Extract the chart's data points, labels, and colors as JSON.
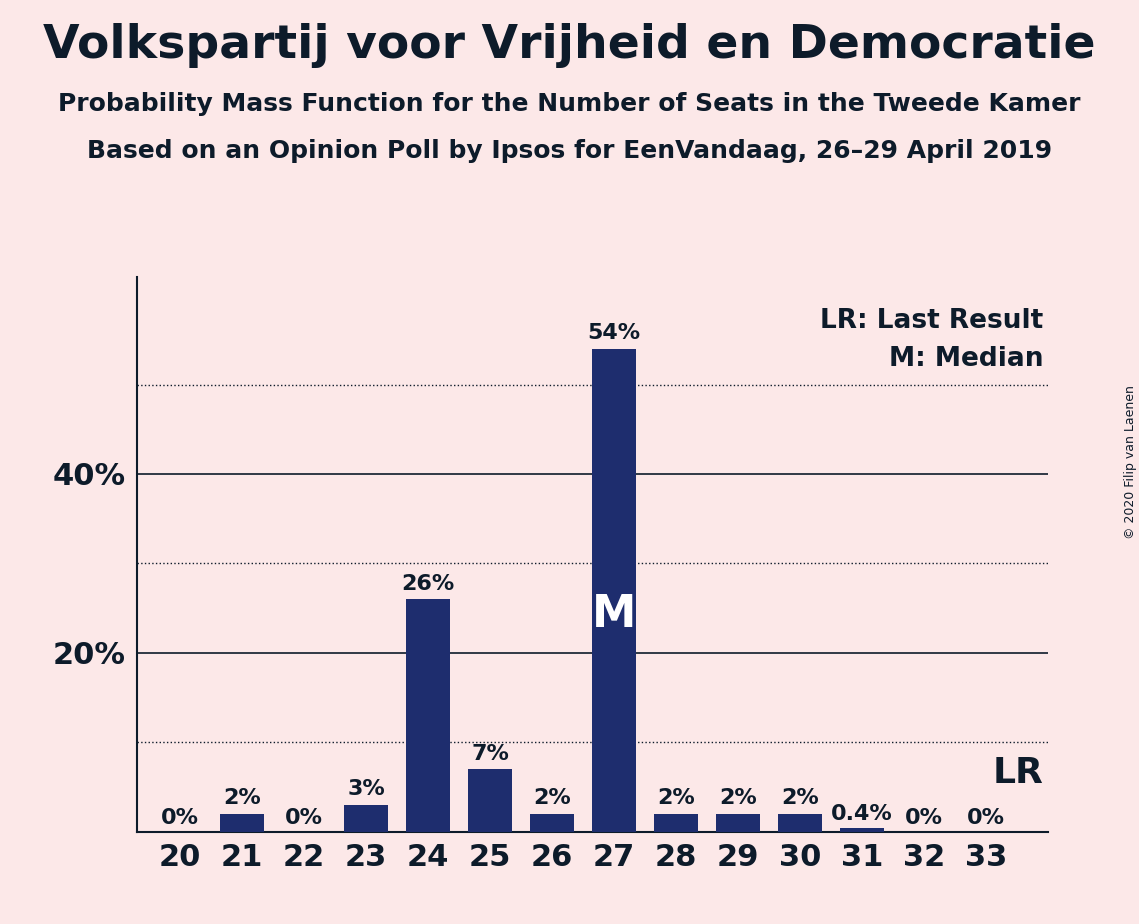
{
  "title": "Volkspartij voor Vrijheid en Democratie",
  "subtitle1": "Probability Mass Function for the Number of Seats in the Tweede Kamer",
  "subtitle2": "Based on an Opinion Poll by Ipsos for EenVandaag, 26–29 April 2019",
  "copyright": "© 2020 Filip van Laenen",
  "seats": [
    20,
    21,
    22,
    23,
    24,
    25,
    26,
    27,
    28,
    29,
    30,
    31,
    32,
    33
  ],
  "probabilities": [
    0.0,
    0.02,
    0.0,
    0.03,
    0.26,
    0.07,
    0.02,
    0.54,
    0.02,
    0.02,
    0.02,
    0.004,
    0.0,
    0.0
  ],
  "labels": [
    "0%",
    "2%",
    "0%",
    "3%",
    "26%",
    "7%",
    "2%",
    "54%",
    "2%",
    "2%",
    "2%",
    "0.4%",
    "0%",
    "0%"
  ],
  "bar_color": "#1e2d6e",
  "background_color": "#fce8e8",
  "text_color": "#0d1b2a",
  "median_seat": 27,
  "lr_seat": 33,
  "lr_label": "LR",
  "lr_legend": "LR: Last Result",
  "m_legend": "M: Median",
  "solid_yticks": [
    0.2,
    0.4
  ],
  "dotted_yticks": [
    0.1,
    0.3,
    0.5
  ],
  "ymax": 0.62,
  "title_fontsize": 34,
  "subtitle_fontsize": 18,
  "label_fontsize": 16,
  "tick_fontsize": 22,
  "legend_fontsize": 19,
  "median_label_fontsize": 32,
  "lr_fontsize": 26,
  "copyright_fontsize": 9
}
